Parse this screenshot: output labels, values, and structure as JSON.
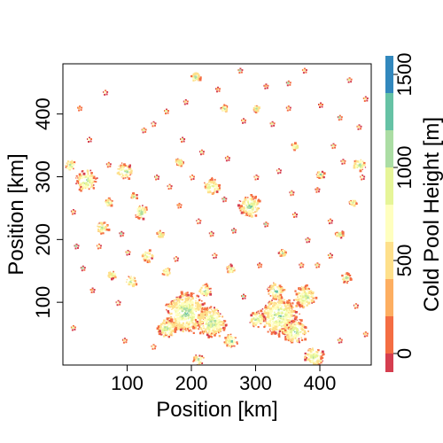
{
  "chart_data": {
    "type": "heatmap",
    "title": "",
    "xlabel": "Position [km]",
    "ylabel": "Position [km]",
    "xlim": [
      0,
      480
    ],
    "ylim": [
      0,
      480
    ],
    "x_ticks": [
      100,
      200,
      300,
      400
    ],
    "y_ticks": [
      100,
      200,
      300,
      400
    ],
    "grid": false,
    "colorbar": {
      "label": "Cold Pool Height [m]",
      "range": [
        -100,
        1600
      ],
      "ticks": [
        0,
        500,
        1000,
        1500
      ],
      "bins": [
        {
          "from": -100,
          "to": 0,
          "color": "#d53e4f"
        },
        {
          "from": 0,
          "to": 200,
          "color": "#f46d43"
        },
        {
          "from": 200,
          "to": 400,
          "color": "#fdae61"
        },
        {
          "from": 400,
          "to": 600,
          "color": "#fee08b"
        },
        {
          "from": 600,
          "to": 800,
          "color": "#ffffbf"
        },
        {
          "from": 800,
          "to": 1000,
          "color": "#e6f598"
        },
        {
          "from": 1000,
          "to": 1200,
          "color": "#abdda4"
        },
        {
          "from": 1200,
          "to": 1400,
          "color": "#66c2a5"
        },
        {
          "from": 1400,
          "to": 1600,
          "color": "#3288bd"
        }
      ]
    },
    "cold_pools": [
      {
        "x": 190,
        "y": 85,
        "r": 30
      },
      {
        "x": 230,
        "y": 70,
        "r": 22
      },
      {
        "x": 160,
        "y": 60,
        "r": 14
      },
      {
        "x": 335,
        "y": 80,
        "r": 28
      },
      {
        "x": 360,
        "y": 55,
        "r": 18
      },
      {
        "x": 375,
        "y": 110,
        "r": 16
      },
      {
        "x": 390,
        "y": 15,
        "r": 14
      },
      {
        "x": 330,
        "y": 120,
        "r": 12
      },
      {
        "x": 220,
        "y": 120,
        "r": 10
      },
      {
        "x": 300,
        "y": 75,
        "r": 12
      },
      {
        "x": 260,
        "y": 40,
        "r": 10
      },
      {
        "x": 210,
        "y": 10,
        "r": 8
      },
      {
        "x": 35,
        "y": 295,
        "r": 16
      },
      {
        "x": 95,
        "y": 310,
        "r": 12
      },
      {
        "x": 290,
        "y": 255,
        "r": 16
      },
      {
        "x": 230,
        "y": 285,
        "r": 12
      },
      {
        "x": 120,
        "y": 245,
        "r": 10
      },
      {
        "x": 60,
        "y": 220,
        "r": 9
      },
      {
        "x": 10,
        "y": 320,
        "r": 8
      },
      {
        "x": 460,
        "y": 320,
        "r": 10
      },
      {
        "x": 130,
        "y": 175,
        "r": 9
      },
      {
        "x": 440,
        "y": 140,
        "r": 7
      },
      {
        "x": 105,
        "y": 135,
        "r": 8
      },
      {
        "x": 205,
        "y": 460,
        "r": 7
      },
      {
        "x": 75,
        "y": 145,
        "r": 6
      },
      {
        "x": 160,
        "y": 150,
        "r": 6
      },
      {
        "x": 260,
        "y": 155,
        "r": 6
      },
      {
        "x": 180,
        "y": 325,
        "r": 6
      },
      {
        "x": 400,
        "y": 305,
        "r": 6
      },
      {
        "x": 430,
        "y": 210,
        "r": 6
      },
      {
        "x": 340,
        "y": 180,
        "r": 5
      },
      {
        "x": 70,
        "y": 260,
        "r": 6
      },
      {
        "x": 150,
        "y": 210,
        "r": 5
      },
      {
        "x": 250,
        "y": 410,
        "r": 5
      },
      {
        "x": 300,
        "y": 410,
        "r": 5
      },
      {
        "x": 360,
        "y": 350,
        "r": 5
      },
      {
        "x": 110,
        "y": 270,
        "r": 5
      },
      {
        "x": 450,
        "y": 260,
        "r": 5
      }
    ],
    "dots": [
      [
        25,
        410
      ],
      [
        65,
        435
      ],
      [
        160,
        405
      ],
      [
        185,
        360
      ],
      [
        240,
        440
      ],
      [
        280,
        390
      ],
      [
        325,
        385
      ],
      [
        350,
        450
      ],
      [
        400,
        415
      ],
      [
        430,
        395
      ],
      [
        460,
        380
      ],
      [
        40,
        360
      ],
      [
        145,
        300
      ],
      [
        210,
        230
      ],
      [
        180,
        255
      ],
      [
        265,
        215
      ],
      [
        315,
        225
      ],
      [
        360,
        240
      ],
      [
        380,
        200
      ],
      [
        415,
        175
      ],
      [
        395,
        280
      ],
      [
        335,
        310
      ],
      [
        255,
        330
      ],
      [
        200,
        300
      ],
      [
        90,
        210
      ],
      [
        30,
        155
      ],
      [
        55,
        190
      ],
      [
        165,
        285
      ],
      [
        125,
        375
      ],
      [
        275,
        470
      ],
      [
        315,
        445
      ],
      [
        375,
        470
      ],
      [
        445,
        455
      ],
      [
        470,
        425
      ],
      [
        15,
        245
      ],
      [
        45,
        120
      ],
      [
        85,
        100
      ],
      [
        95,
        40
      ],
      [
        140,
        30
      ],
      [
        280,
        110
      ],
      [
        395,
        160
      ],
      [
        455,
        95
      ],
      [
        470,
        50
      ],
      [
        430,
        40
      ],
      [
        15,
        60
      ],
      [
        20,
        190
      ],
      [
        175,
        170
      ],
      [
        235,
        175
      ],
      [
        305,
        160
      ],
      [
        370,
        160
      ],
      [
        415,
        230
      ],
      [
        465,
        300
      ],
      [
        435,
        325
      ],
      [
        300,
        300
      ],
      [
        355,
        275
      ],
      [
        215,
        340
      ],
      [
        140,
        385
      ],
      [
        190,
        420
      ],
      [
        70,
        320
      ],
      [
        230,
        210
      ],
      [
        350,
        410
      ],
      [
        420,
        350
      ],
      [
        100,
        180
      ],
      [
        250,
        265
      ]
    ]
  }
}
